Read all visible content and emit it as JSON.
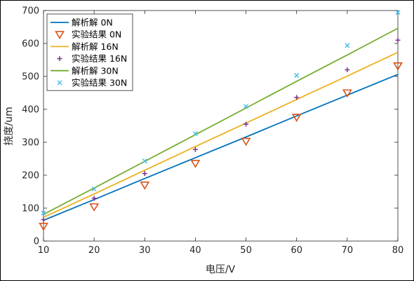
{
  "chart_data": {
    "type": "line",
    "title": "",
    "xlabel": "电压/V",
    "ylabel": "挠度/um",
    "xlim": [
      10,
      80
    ],
    "ylim": [
      0,
      700
    ],
    "xticks": [
      10,
      20,
      30,
      40,
      50,
      60,
      70,
      80
    ],
    "yticks": [
      0,
      100,
      200,
      300,
      400,
      500,
      600,
      700
    ],
    "x": [
      10,
      20,
      30,
      40,
      50,
      60,
      70,
      80
    ],
    "grid": false,
    "legend_position": "top-left",
    "series": [
      {
        "name": "解析解 0N",
        "kind": "line",
        "color": "#0072BD",
        "values": [
          63,
          126,
          190,
          253,
          316,
          380,
          443,
          506
        ]
      },
      {
        "name": "实验结果 0N",
        "kind": "marker",
        "marker": "triangle-down",
        "color": "#D95319",
        "values": [
          45,
          104,
          170,
          236,
          303,
          376,
          450,
          532
        ]
      },
      {
        "name": "解析解 16N",
        "kind": "line",
        "color": "#EDB120",
        "values": [
          72,
          143,
          215,
          287,
          358,
          430,
          501,
          573
        ]
      },
      {
        "name": "实验结果 16N",
        "kind": "marker",
        "marker": "plus",
        "color": "#7E2F8E",
        "values": [
          65,
          130,
          205,
          278,
          355,
          436,
          520,
          610
        ]
      },
      {
        "name": "解析解 30N",
        "kind": "line",
        "color": "#77AC30",
        "values": [
          81,
          161,
          242,
          323,
          404,
          485,
          565,
          646
        ]
      },
      {
        "name": "实验结果 30N",
        "kind": "marker",
        "marker": "x",
        "color": "#4DBEEE",
        "values": [
          85,
          158,
          243,
          326,
          409,
          503,
          594,
          694
        ]
      }
    ]
  }
}
